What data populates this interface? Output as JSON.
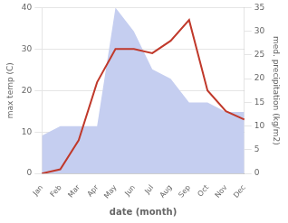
{
  "chart_data": {
    "type": "line",
    "categories": [
      "Jan",
      "Feb",
      "Mar",
      "Apr",
      "May",
      "Jun",
      "Jul",
      "Aug",
      "Sep",
      "Oct",
      "Nov",
      "Dec"
    ],
    "series": [
      {
        "type": "area",
        "axis": "y2",
        "color": "#c5cef0",
        "values": [
          8,
          10,
          10,
          10,
          35,
          30,
          22,
          20,
          15,
          15,
          13,
          13
        ]
      },
      {
        "type": "line",
        "color": "#c0392b",
        "values": [
          0,
          1,
          8,
          22,
          30,
          30,
          29,
          32,
          37,
          20,
          15,
          13
        ]
      }
    ],
    "xlabel": "date (month)",
    "ylabel": "max temp (C)",
    "y2label": "med. precipitation (kg/m2)",
    "ylim": [
      0,
      40
    ],
    "yticks": [
      0,
      10,
      20,
      30,
      40
    ],
    "y2lim": [
      0,
      35
    ],
    "y2ticks": [
      0,
      5,
      10,
      15,
      20,
      25,
      30,
      35
    ],
    "grid": true
  }
}
